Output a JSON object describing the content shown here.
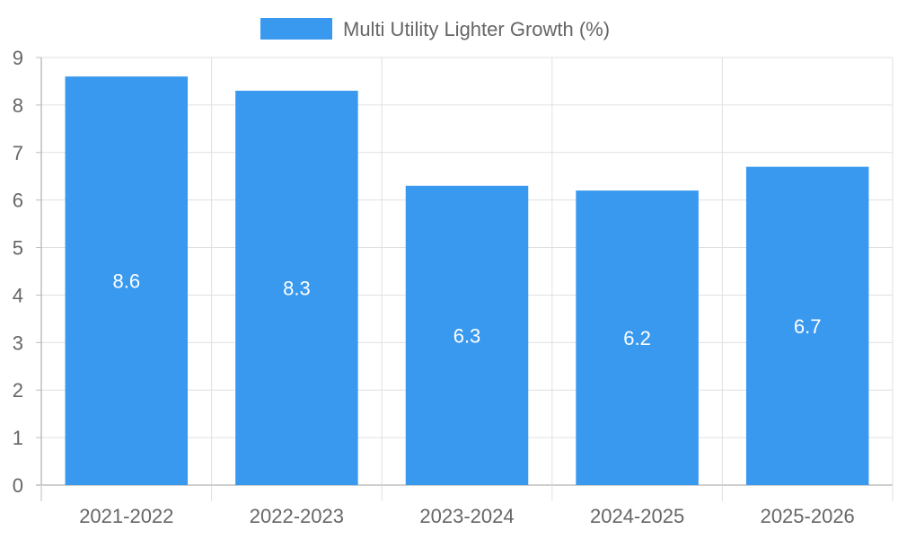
{
  "chart_data": {
    "type": "bar",
    "title": "",
    "xlabel": "",
    "ylabel": "",
    "categories": [
      "2021-2022",
      "2022-2023",
      "2023-2024",
      "2024-2025",
      "2025-2026"
    ],
    "series": [
      {
        "name": "Multi Utility Lighter Growth (%)",
        "values": [
          8.6,
          8.3,
          6.3,
          6.2,
          6.7
        ],
        "color": "#3999EF"
      }
    ],
    "data_labels": [
      "8.6",
      "8.3",
      "6.3",
      "6.2",
      "6.7"
    ],
    "ylim": [
      0,
      9
    ],
    "y_ticks": [
      "0",
      "1",
      "2",
      "3",
      "4",
      "5",
      "6",
      "7",
      "8",
      "9"
    ],
    "y_tick_values": [
      0,
      1,
      2,
      3,
      4,
      5,
      6,
      7,
      8,
      9
    ],
    "grid": true,
    "legend_position": "top-center",
    "colors": {
      "grid": "#e0e0e0",
      "axis": "#bdbdbd",
      "text": "#666666",
      "label": "#ffffff"
    }
  }
}
